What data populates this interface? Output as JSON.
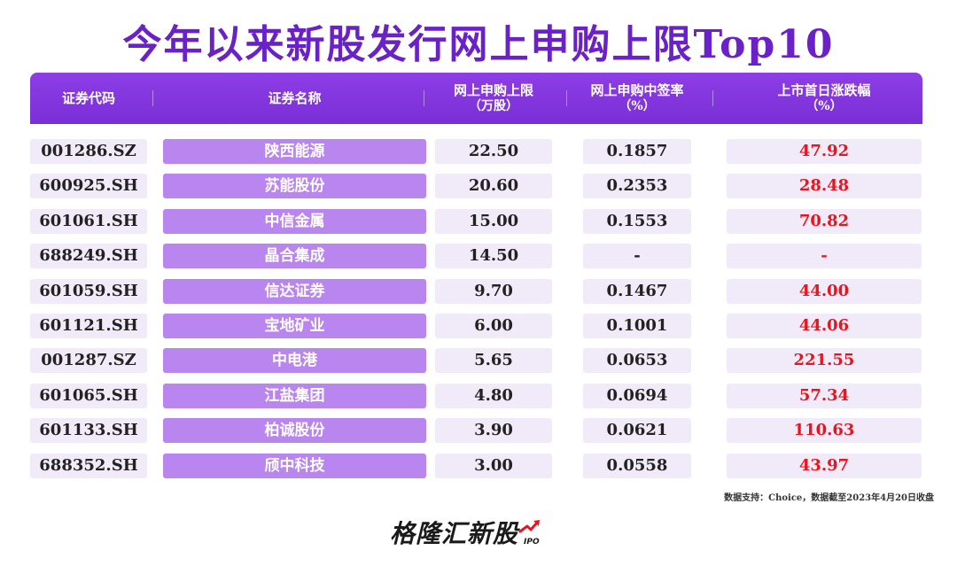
{
  "title": "今年以来新股发行网上申购上限Top10",
  "headers": {
    "code": "证券代码",
    "name": "证券名称",
    "limit_line1": "网上申购上限",
    "limit_line2": "（万股）",
    "rate_line1": "网上申购中签率",
    "rate_line2": "（%）",
    "change_line1": "上市首日涨跌幅",
    "change_line2": "（%）"
  },
  "rows": [
    {
      "code": "001286.SZ",
      "name": "陕西能源",
      "limit": "22.50",
      "rate": "0.1857",
      "change": "47.92"
    },
    {
      "code": "600925.SH",
      "name": "苏能股份",
      "limit": "20.60",
      "rate": "0.2353",
      "change": "28.48"
    },
    {
      "code": "601061.SH",
      "name": "中信金属",
      "limit": "15.00",
      "rate": "0.1553",
      "change": "70.82"
    },
    {
      "code": "688249.SH",
      "name": "晶合集成",
      "limit": "14.50",
      "rate": "-",
      "change": "-"
    },
    {
      "code": "601059.SH",
      "name": "信达证券",
      "limit": "9.70",
      "rate": "0.1467",
      "change": "44.00"
    },
    {
      "code": "601121.SH",
      "name": "宝地矿业",
      "limit": "6.00",
      "rate": "0.1001",
      "change": "44.06"
    },
    {
      "code": "001287.SZ",
      "name": "中电港",
      "limit": "5.65",
      "rate": "0.0653",
      "change": "221.55"
    },
    {
      "code": "601065.SH",
      "name": "江盐集团",
      "limit": "4.80",
      "rate": "0.0694",
      "change": "57.34"
    },
    {
      "code": "601133.SH",
      "name": "柏诚股份",
      "limit": "3.90",
      "rate": "0.0621",
      "change": "110.63"
    },
    {
      "code": "688352.SH",
      "name": "颀中科技",
      "limit": "3.00",
      "rate": "0.0558",
      "change": "43.97"
    }
  ],
  "source": "数据支持：Choice，数据截至2023年4月20日收盘",
  "logo": {
    "text": "格隆汇新股",
    "sub": "IPO"
  },
  "colors": {
    "accent": "#7a2fd6",
    "name_cell": "#b985ee",
    "cell_bg": "#f1eaf9",
    "positive": "#e8141e"
  }
}
